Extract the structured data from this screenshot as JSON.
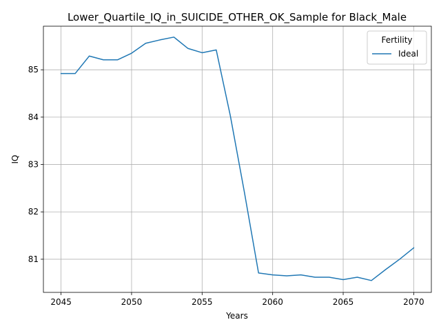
{
  "chart_data": {
    "type": "line",
    "title": "Lower_Quartile_IQ_in_SUICIDE_OTHER_OK_Sample for Black_Male",
    "xlabel": "Years",
    "ylabel": "IQ",
    "xlim": [
      2043.75,
      2071.25
    ],
    "ylim": [
      80.3,
      85.92
    ],
    "xticks": [
      2045,
      2050,
      2055,
      2060,
      2065,
      2070
    ],
    "yticks": [
      81,
      82,
      83,
      84,
      85
    ],
    "grid": true,
    "legend": {
      "title": "Fertility",
      "position": "top-right"
    },
    "series": [
      {
        "name": "Ideal",
        "color": "#1f77b4",
        "x": [
          2045,
          2046,
          2047,
          2048,
          2049,
          2050,
          2051,
          2052,
          2053,
          2054,
          2055,
          2056,
          2057,
          2058,
          2059,
          2060,
          2061,
          2062,
          2063,
          2064,
          2065,
          2066,
          2067,
          2068,
          2069,
          2070
        ],
        "y": [
          84.92,
          84.92,
          85.29,
          85.21,
          85.21,
          85.35,
          85.56,
          85.63,
          85.69,
          85.45,
          85.36,
          85.42,
          84.03,
          82.41,
          80.71,
          80.67,
          80.65,
          80.67,
          80.62,
          80.62,
          80.57,
          80.62,
          80.55,
          80.78,
          81.0,
          81.24
        ]
      }
    ]
  }
}
